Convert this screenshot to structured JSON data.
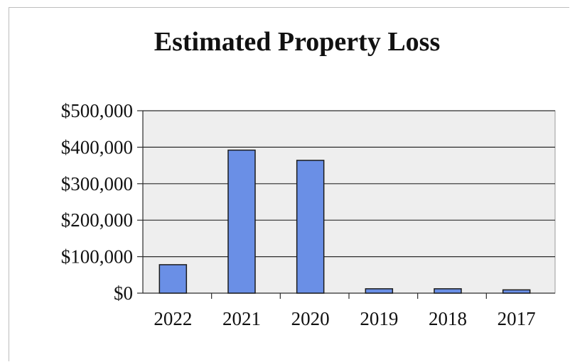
{
  "chart_data": {
    "type": "bar",
    "title": "Estimated Property Loss",
    "categories": [
      "2022",
      "2021",
      "2020",
      "2019",
      "2018",
      "2017"
    ],
    "values": [
      78000,
      392000,
      364000,
      12000,
      12000,
      9000
    ],
    "ylim": [
      0,
      500000
    ],
    "yticks": [
      0,
      100000,
      200000,
      300000,
      400000,
      500000
    ],
    "ytick_labels": [
      "$0",
      "$100,000",
      "$200,000",
      "$300,000",
      "$400,000",
      "$500,000"
    ],
    "grid": true,
    "legend": "none"
  },
  "colors": {
    "bar_fill": "#6a8fe6",
    "bar_stroke": "#1b1b1b",
    "plot_background": "#eeeeee",
    "gridline": "#2b2b2b"
  }
}
